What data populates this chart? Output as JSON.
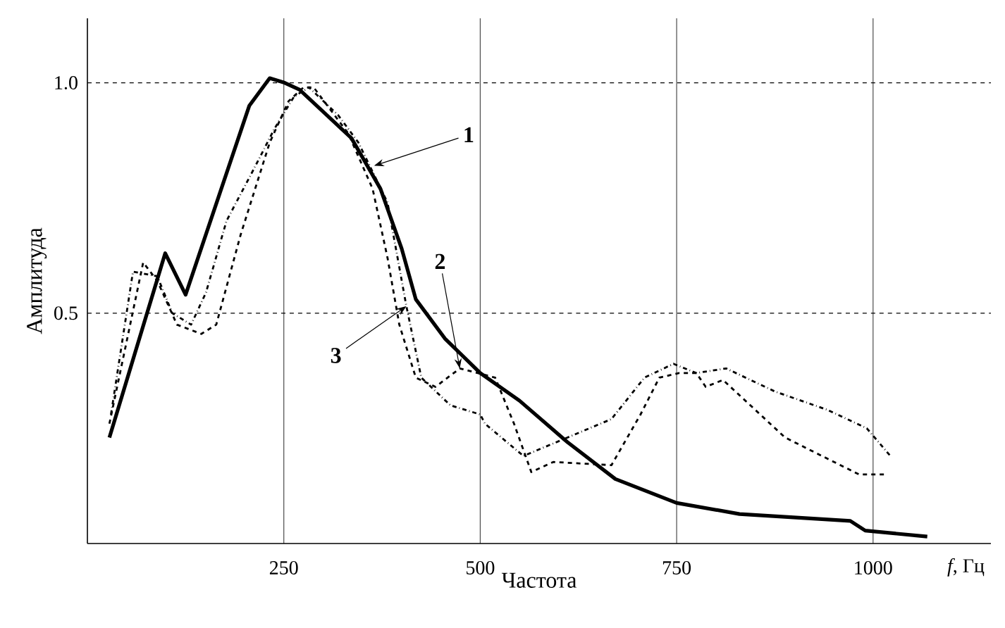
{
  "chart_data": {
    "type": "line",
    "xlabel": "Частота",
    "ylabel": "Амплитуда",
    "xlim": [
      0,
      1150
    ],
    "ylim": [
      0,
      1.14
    ],
    "xticks": [
      250,
      500,
      750,
      1000
    ],
    "yticks": [
      0.5,
      {
        "value": 1,
        "label": "1.0"
      }
    ],
    "grid": true,
    "series": [
      {
        "color": "#000000",
        "line_style": "solid",
        "x": [
          28,
          99,
          125,
          206,
          232,
          251,
          270,
          336,
          373,
          400,
          418,
          455,
          500,
          550,
          611,
          672,
          750,
          830,
          971,
          990,
          1069
        ],
        "values": [
          0.23,
          0.63,
          0.54,
          0.95,
          1.01,
          1.0,
          0.985,
          0.88,
          0.77,
          0.64,
          0.53,
          0.445,
          0.37,
          0.31,
          0.22,
          0.14,
          0.088,
          0.064,
          0.049,
          0.028,
          0.015
        ]
      },
      {
        "color": "#000000",
        "line_style": "dashed",
        "x": [
          28,
          71,
          89,
          114,
          145,
          164,
          195,
          232,
          256,
          275,
          288,
          332,
          363,
          382,
          397,
          418,
          443,
          474,
          519,
          543,
          565,
          593,
          667,
          704,
          728,
          753,
          775,
          787,
          809,
          888,
          982,
          1015
        ],
        "values": [
          0.26,
          0.61,
          0.57,
          0.475,
          0.455,
          0.475,
          0.67,
          0.87,
          0.96,
          0.99,
          0.99,
          0.89,
          0.77,
          0.62,
          0.475,
          0.36,
          0.34,
          0.38,
          0.36,
          0.26,
          0.155,
          0.177,
          0.17,
          0.28,
          0.36,
          0.37,
          0.37,
          0.34,
          0.355,
          0.23,
          0.15,
          0.15
        ]
      },
      {
        "color": "#000000",
        "line_style": "dashdot",
        "x": [
          30,
          58,
          89,
          108,
          132,
          151,
          177,
          214,
          238,
          263,
          282,
          319,
          345,
          382,
          406,
          425,
          462,
          500,
          506,
          555,
          611,
          667,
          709,
          746,
          775,
          813,
          875,
          942,
          992,
          1022
        ],
        "values": [
          0.28,
          0.59,
          0.58,
          0.5,
          0.475,
          0.545,
          0.7,
          0.82,
          0.9,
          0.97,
          0.99,
          0.93,
          0.87,
          0.74,
          0.515,
          0.36,
          0.3,
          0.28,
          0.26,
          0.19,
          0.23,
          0.27,
          0.36,
          0.39,
          0.37,
          0.38,
          0.33,
          0.29,
          0.25,
          0.19
        ]
      }
    ],
    "annotations": [
      {
        "text": "1",
        "x": 365,
        "y": 0.82
      },
      {
        "text": "2",
        "x": 474,
        "y": 0.38
      },
      {
        "text": "3",
        "x": 406,
        "y": 0.515
      },
      "*f*, Гц"
    ]
  }
}
